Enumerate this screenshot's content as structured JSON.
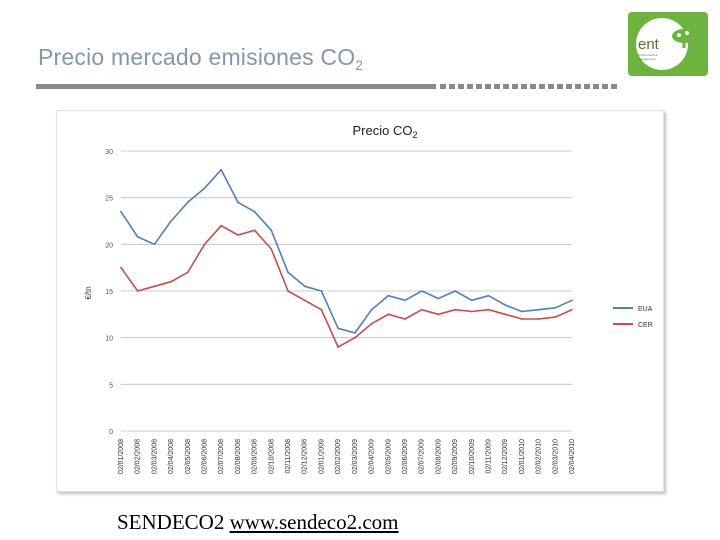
{
  "slide": {
    "title_main": "Precio mercado emisiones CO",
    "title_sub": "2",
    "caption_source": "SENDECO2",
    "caption_link": "www.sendeco2.com"
  },
  "logo": {
    "text": "ent",
    "subtext": "environment & management",
    "color": "#6db33f"
  },
  "chart_data": {
    "type": "line",
    "title_main": "Precio CO",
    "title_sub": "2",
    "ylabel": "€/tn",
    "ylim": [
      0,
      30
    ],
    "yticks": [
      0,
      5,
      10,
      15,
      20,
      25,
      30
    ],
    "grid": true,
    "legend_position": "right",
    "categories": [
      "02/01/2008",
      "02/02/2008",
      "02/03/2008",
      "02/04/2008",
      "02/05/2008",
      "02/06/2008",
      "02/07/2008",
      "02/08/2008",
      "02/09/2008",
      "02/10/2008",
      "02/11/2008",
      "02/12/2008",
      "02/01/2009",
      "02/02/2009",
      "02/03/2009",
      "02/04/2009",
      "02/05/2009",
      "02/06/2009",
      "02/07/2009",
      "02/08/2009",
      "02/09/2009",
      "02/10/2009",
      "02/11/2009",
      "02/12/2009",
      "02/01/2010",
      "02/02/2010",
      "02/03/2010",
      "02/04/2010"
    ],
    "series": [
      {
        "name": "EUA",
        "color": "#4f81bd",
        "values": [
          23.5,
          20.8,
          20.0,
          22.5,
          24.5,
          26.0,
          28.0,
          24.5,
          23.5,
          21.5,
          17.0,
          15.5,
          15.0,
          11.0,
          10.5,
          13.0,
          14.5,
          14.0,
          15.0,
          14.2,
          15.0,
          14.0,
          14.5,
          13.5,
          12.8,
          13.0,
          13.2,
          14.0
        ]
      },
      {
        "name": "CER",
        "color": "#c0504d",
        "values": [
          17.5,
          15.0,
          15.5,
          16.0,
          17.0,
          20.0,
          22.0,
          21.0,
          21.5,
          19.5,
          15.0,
          14.0,
          13.0,
          9.0,
          10.0,
          11.5,
          12.5,
          12.0,
          13.0,
          12.5,
          13.0,
          12.8,
          13.0,
          12.5,
          12.0,
          12.0,
          12.2,
          13.0
        ]
      }
    ]
  }
}
